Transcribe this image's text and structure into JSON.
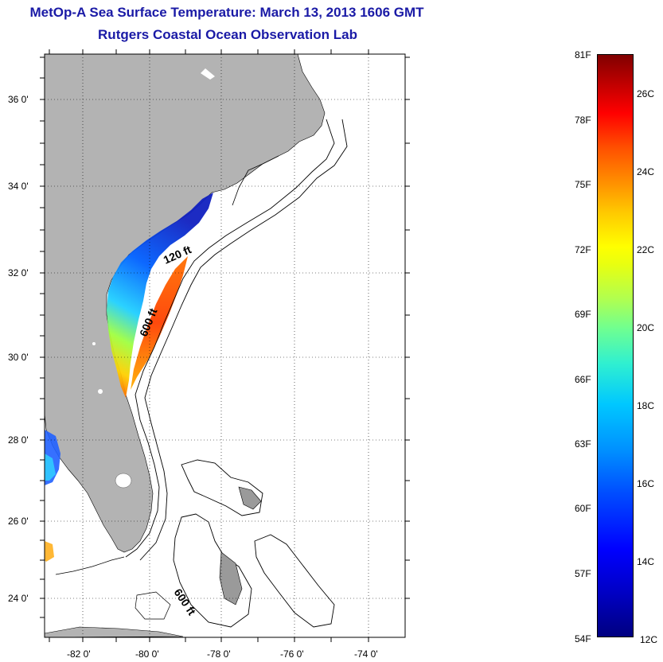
{
  "title": {
    "line1": "MetOp-A Sea Surface Temperature:  March 13, 2013 1606 GMT",
    "line2": "Rutgers Coastal Ocean Observation Lab"
  },
  "map": {
    "y_ticks": [
      "36 0'",
      "34 0'",
      "32 0'",
      "30 0'",
      "28 0'",
      "26 0'",
      "24 0'"
    ],
    "x_ticks": [
      "-82 0'",
      "-80 0'",
      "-78 0'",
      "-76 0'",
      "-74 0'"
    ],
    "contour_labels": [
      "120 ft",
      "600 ft",
      "600 ft"
    ],
    "colors": {
      "land": "#b3b3b3",
      "ocean": "#ffffff",
      "title": "#1a1aa6"
    }
  },
  "colorbar": {
    "fahrenheit_labels": [
      "81F",
      "78F",
      "75F",
      "72F",
      "69F",
      "66F",
      "63F",
      "60F",
      "57F",
      "54F"
    ],
    "celsius_labels": [
      "26C",
      "24C",
      "22C",
      "20C",
      "18C",
      "16C",
      "14C",
      "12C"
    ]
  }
}
